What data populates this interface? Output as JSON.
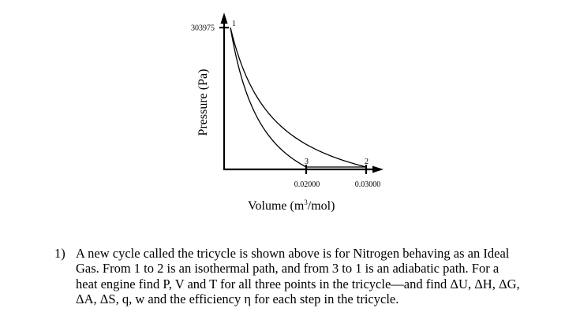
{
  "chart_data": {
    "type": "line",
    "title": "",
    "xlabel": "Volume (m³/mol)",
    "xlabel_base": "Volume (m",
    "xlabel_sup": "3",
    "xlabel_tail": "/mol)",
    "ylabel": "Pressure (Pa)",
    "y_ticks": [
      {
        "value": 303975,
        "label": "303975"
      }
    ],
    "x_ticks": [
      {
        "value": 0.02,
        "label": "0.02000"
      },
      {
        "value": 0.03,
        "label": "0.03000"
      }
    ],
    "points": [
      {
        "label": "1",
        "V": 0.00737,
        "P": 303975
      },
      {
        "label": "2",
        "V": 0.03,
        "P": 74675
      },
      {
        "label": "3",
        "V": 0.02,
        "P": 74675
      }
    ],
    "series": [
      {
        "name": "1 to 2 isothermal",
        "path": "isothermal",
        "from": "1",
        "to": "2"
      },
      {
        "name": "2 to 3 isobaric",
        "path": "isobaric",
        "from": "2",
        "to": "3"
      },
      {
        "name": "3 to 1 adiabatic",
        "path": "adiabatic",
        "from": "3",
        "to": "1"
      }
    ],
    "grid": false,
    "legend": "none"
  },
  "problem": {
    "number": "1)",
    "text": "A new cycle called the tricycle is shown above is for Nitrogen behaving as an Ideal\nGas.  From 1 to 2 is an isothermal path, and from 3 to 1 is an adiabatic path.  For a\nheat engine find P, V and T for all three points in the tricycle—and find ΔU, ΔH, ΔG,\nΔA, ΔS, q, w and the efficiency η for each step in the tricycle."
  }
}
